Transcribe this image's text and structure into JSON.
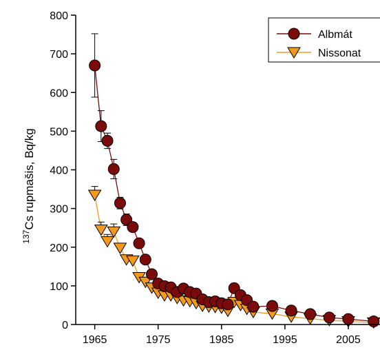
{
  "chart_data": {
    "type": "scatter",
    "title": "",
    "xlabel": "",
    "ylabel_sup": "137",
    "ylabel_text": "Cs rupmašis, Bq/kg",
    "xlim": [
      1962,
      2010
    ],
    "ylim": [
      0,
      800
    ],
    "xticks": [
      1965,
      1975,
      1985,
      1995,
      2005
    ],
    "yticks": [
      0,
      100,
      200,
      300,
      400,
      500,
      600,
      700,
      800
    ],
    "grid": false,
    "legend_position": "top-right",
    "series": [
      {
        "name": "Albmát",
        "color": "#7b0a0a",
        "marker": "circle",
        "points": [
          {
            "x": 1965,
            "y": 670,
            "err": 82
          },
          {
            "x": 1966,
            "y": 513,
            "err": 40
          },
          {
            "x": 1967,
            "y": 475,
            "err": 20
          },
          {
            "x": 1968,
            "y": 402,
            "err": 25
          },
          {
            "x": 1969,
            "y": 314,
            "err": 15
          },
          {
            "x": 1970,
            "y": 271,
            "err": 15
          },
          {
            "x": 1971,
            "y": 252,
            "err": 12
          },
          {
            "x": 1972,
            "y": 210,
            "err": 12
          },
          {
            "x": 1973,
            "y": 168,
            "err": 8
          },
          {
            "x": 1974,
            "y": 130,
            "err": 8
          },
          {
            "x": 1975,
            "y": 106,
            "err": 6
          },
          {
            "x": 1976,
            "y": 99,
            "err": 5
          },
          {
            "x": 1977,
            "y": 96,
            "err": 5
          },
          {
            "x": 1978,
            "y": 84,
            "err": 4
          },
          {
            "x": 1979,
            "y": 93,
            "err": 4
          },
          {
            "x": 1980,
            "y": 84,
            "err": 4
          },
          {
            "x": 1981,
            "y": 80,
            "err": 4
          },
          {
            "x": 1982,
            "y": 65,
            "err": 3
          },
          {
            "x": 1983,
            "y": 58,
            "err": 3
          },
          {
            "x": 1984,
            "y": 60,
            "err": 3
          },
          {
            "x": 1985,
            "y": 55,
            "err": 3
          },
          {
            "x": 1986,
            "y": 52,
            "err": 3
          },
          {
            "x": 1987,
            "y": 94,
            "err": 5
          },
          {
            "x": 1988,
            "y": 76,
            "err": 4
          },
          {
            "x": 1989,
            "y": 63,
            "err": 3
          },
          {
            "x": 1990,
            "y": 46,
            "err": 3
          },
          {
            "x": 1993,
            "y": 48,
            "err": 3
          },
          {
            "x": 1996,
            "y": 36,
            "err": 2
          },
          {
            "x": 1999,
            "y": 27,
            "err": 2
          },
          {
            "x": 2002,
            "y": 18,
            "err": 2
          },
          {
            "x": 2005,
            "y": 14,
            "err": 1
          },
          {
            "x": 2009,
            "y": 8,
            "err": 1
          }
        ]
      },
      {
        "name": "Nissonat",
        "color": "#f39a1e",
        "marker": "triangle-down",
        "points": [
          {
            "x": 1965,
            "y": 335,
            "err": 22
          },
          {
            "x": 1966,
            "y": 245,
            "err": 20
          },
          {
            "x": 1967,
            "y": 215,
            "err": 18
          },
          {
            "x": 1968,
            "y": 240,
            "err": 20
          },
          {
            "x": 1969,
            "y": 198,
            "err": 12
          },
          {
            "x": 1970,
            "y": 168,
            "err": 10
          },
          {
            "x": 1971,
            "y": 165,
            "err": 10
          },
          {
            "x": 1972,
            "y": 122,
            "err": 8
          },
          {
            "x": 1973,
            "y": 110,
            "err": 7
          },
          {
            "x": 1974,
            "y": 95,
            "err": 6
          },
          {
            "x": 1975,
            "y": 82,
            "err": 5
          },
          {
            "x": 1976,
            "y": 75,
            "err": 4
          },
          {
            "x": 1977,
            "y": 75,
            "err": 4
          },
          {
            "x": 1978,
            "y": 68,
            "err": 4
          },
          {
            "x": 1979,
            "y": 62,
            "err": 3
          },
          {
            "x": 1980,
            "y": 60,
            "err": 3
          },
          {
            "x": 1981,
            "y": 55,
            "err": 3
          },
          {
            "x": 1982,
            "y": 48,
            "err": 3
          },
          {
            "x": 1983,
            "y": 46,
            "err": 3
          },
          {
            "x": 1984,
            "y": 45,
            "err": 3
          },
          {
            "x": 1985,
            "y": 43,
            "err": 2
          },
          {
            "x": 1986,
            "y": 35,
            "err": 2
          },
          {
            "x": 1987,
            "y": 58,
            "err": 3
          },
          {
            "x": 1988,
            "y": 50,
            "err": 3
          },
          {
            "x": 1989,
            "y": 40,
            "err": 2
          },
          {
            "x": 1990,
            "y": 32,
            "err": 2
          },
          {
            "x": 1993,
            "y": 28,
            "err": 2
          },
          {
            "x": 1996,
            "y": 20,
            "err": 2
          },
          {
            "x": 1999,
            "y": 15,
            "err": 1
          },
          {
            "x": 2002,
            "y": 11,
            "err": 1
          },
          {
            "x": 2005,
            "y": 8,
            "err": 1
          },
          {
            "x": 2009,
            "y": 5,
            "err": 1
          }
        ]
      }
    ]
  }
}
